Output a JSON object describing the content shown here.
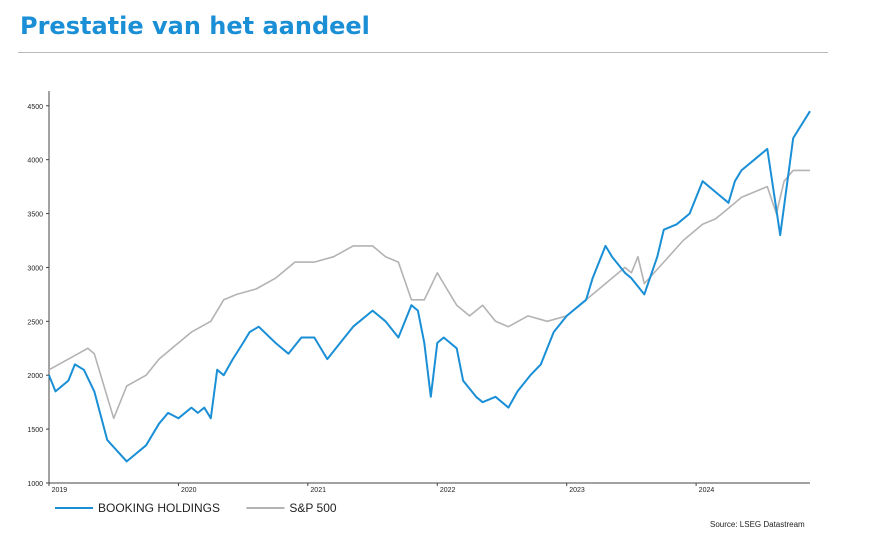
{
  "page": {
    "title": "Prestatie van het aandeel"
  },
  "source": "Source: LSEG Datastream",
  "chart_data": {
    "type": "line",
    "title": "Prestatie van het aandeel",
    "xlabel": "",
    "ylabel": "",
    "xlim": [
      2019.0,
      2024.88
    ],
    "ylim": [
      1000,
      4600
    ],
    "y_ticks": [
      1000,
      1500,
      2000,
      2500,
      3000,
      3500,
      4000,
      4500
    ],
    "x_ticks": [
      "2019",
      "2020",
      "2021",
      "2022",
      "2023",
      "2024"
    ],
    "grid": false,
    "legend": "bottom-left",
    "series": [
      {
        "name": "BOOKING HOLDINGS",
        "color": "#1a8fd6",
        "x": [
          2019.0,
          2019.05,
          2019.15,
          2019.2,
          2019.27,
          2019.35,
          2019.45,
          2019.6,
          2019.75,
          2019.85,
          2019.92,
          2020.0,
          2020.1,
          2020.15,
          2020.2,
          2020.25,
          2020.3,
          2020.35,
          2020.42,
          2020.5,
          2020.55,
          2020.62,
          2020.75,
          2020.85,
          2020.95,
          2021.05,
          2021.15,
          2021.25,
          2021.35,
          2021.5,
          2021.6,
          2021.7,
          2021.8,
          2021.85,
          2021.9,
          2021.95,
          2022.0,
          2022.05,
          2022.15,
          2022.2,
          2022.3,
          2022.35,
          2022.45,
          2022.55,
          2022.62,
          2022.72,
          2022.8,
          2022.9,
          2023.0,
          2023.1,
          2023.15,
          2023.2,
          2023.3,
          2023.35,
          2023.45,
          2023.5,
          2023.6,
          2023.7,
          2023.75,
          2023.85,
          2023.95,
          2024.05,
          2024.15,
          2024.25,
          2024.3,
          2024.35,
          2024.45,
          2024.55,
          2024.65,
          2024.75,
          2024.88
        ],
        "values": [
          2000,
          1850,
          1950,
          2100,
          2050,
          1850,
          1400,
          1200,
          1350,
          1550,
          1650,
          1600,
          1700,
          1650,
          1700,
          1600,
          2050,
          2000,
          2150,
          2300,
          2400,
          2450,
          2300,
          2200,
          2350,
          2350,
          2150,
          2300,
          2450,
          2600,
          2500,
          2350,
          2650,
          2600,
          2300,
          1800,
          2300,
          2350,
          2250,
          1950,
          1800,
          1750,
          1800,
          1700,
          1850,
          2000,
          2100,
          2400,
          2550,
          2650,
          2700,
          2900,
          3200,
          3100,
          2950,
          2900,
          2750,
          3100,
          3350,
          3400,
          3500,
          3800,
          3700,
          3600,
          3800,
          3900,
          4000,
          4100,
          3300,
          4200,
          4450
        ]
      },
      {
        "name": "S&P 500",
        "color": "#b3b3b3",
        "x": [
          2019.0,
          2019.15,
          2019.3,
          2019.35,
          2019.45,
          2019.5,
          2019.6,
          2019.75,
          2019.85,
          2019.95,
          2020.1,
          2020.25,
          2020.35,
          2020.45,
          2020.6,
          2020.75,
          2020.9,
          2021.05,
          2021.2,
          2021.35,
          2021.5,
          2021.6,
          2021.7,
          2021.8,
          2021.9,
          2022.0,
          2022.05,
          2022.15,
          2022.25,
          2022.35,
          2022.45,
          2022.55,
          2022.7,
          2022.85,
          2023.0,
          2023.15,
          2023.3,
          2023.45,
          2023.5,
          2023.55,
          2023.6,
          2023.75,
          2023.9,
          2024.05,
          2024.15,
          2024.25,
          2024.35,
          2024.45,
          2024.55,
          2024.62,
          2024.68,
          2024.75,
          2024.88
        ],
        "values": [
          2050,
          2150,
          2250,
          2200,
          1800,
          1600,
          1900,
          2000,
          2150,
          2250,
          2400,
          2500,
          2700,
          2750,
          2800,
          2900,
          3050,
          3050,
          3100,
          3200,
          3200,
          3100,
          3050,
          2700,
          2700,
          2950,
          2850,
          2650,
          2550,
          2650,
          2500,
          2450,
          2550,
          2500,
          2550,
          2700,
          2850,
          3000,
          2950,
          3100,
          2850,
          3050,
          3250,
          3400,
          3450,
          3550,
          3650,
          3700,
          3750,
          3500,
          3800,
          3900,
          3900
        ]
      }
    ]
  }
}
